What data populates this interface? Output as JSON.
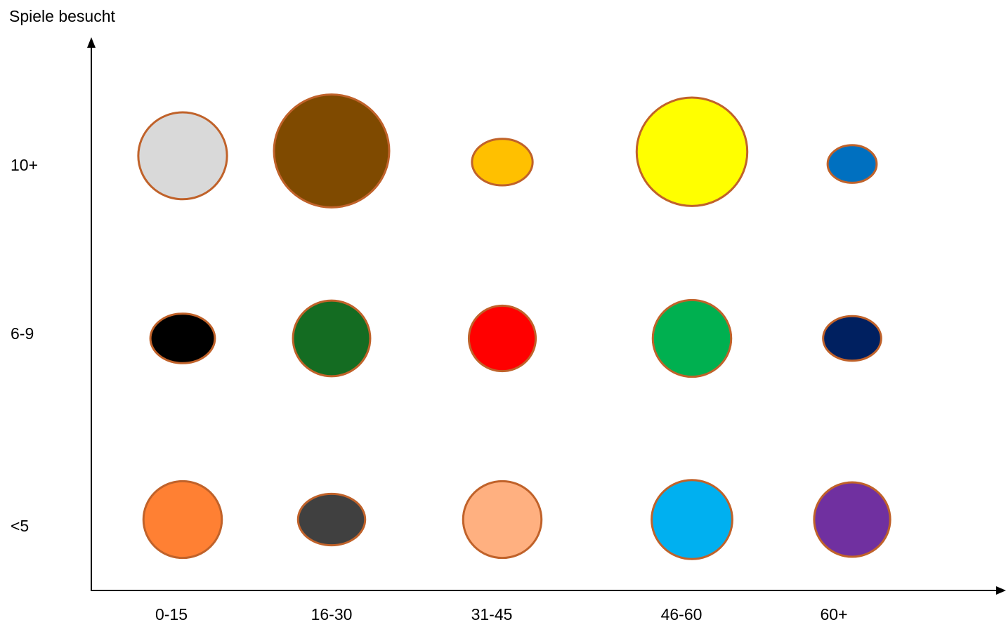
{
  "chart_data": {
    "type": "scatter",
    "ylabel": "Spiele besucht",
    "xlabel": "",
    "categories": [
      "0-15",
      "16-30",
      "31-45",
      "46-60",
      "60+"
    ],
    "y_categories": [
      "<5",
      "6-9",
      "10+"
    ],
    "bubble_outline_color": "#C0622A",
    "axis_color": "#000000",
    "grid": false,
    "legend": "none",
    "points": [
      {
        "x": "0-15",
        "y": "10+",
        "size": 0.77,
        "color": "#D9D9D9"
      },
      {
        "x": "16-30",
        "y": "10+",
        "size": 1.0,
        "color": "#7F4A00"
      },
      {
        "x": "31-45",
        "y": "10+",
        "size": 0.47,
        "color": "#FFC000"
      },
      {
        "x": "46-60",
        "y": "10+",
        "size": 0.96,
        "color": "#FFFF00"
      },
      {
        "x": "60+",
        "y": "10+",
        "size": 0.38,
        "color": "#0070C0"
      },
      {
        "x": "0-15",
        "y": "6-9",
        "size": 0.5,
        "color": "#000000"
      },
      {
        "x": "16-30",
        "y": "6-9",
        "size": 0.67,
        "color": "#146C22"
      },
      {
        "x": "31-45",
        "y": "6-9",
        "size": 0.58,
        "color": "#FF0000"
      },
      {
        "x": "46-60",
        "y": "6-9",
        "size": 0.68,
        "color": "#00B050"
      },
      {
        "x": "60+",
        "y": "6-9",
        "size": 0.45,
        "color": "#002060"
      },
      {
        "x": "0-15",
        "y": "<5",
        "size": 0.68,
        "color": "#FF8033"
      },
      {
        "x": "16-30",
        "y": "<5",
        "size": 0.52,
        "color": "#404040"
      },
      {
        "x": "31-45",
        "y": "<5",
        "size": 0.68,
        "color": "#FFB080"
      },
      {
        "x": "46-60",
        "y": "<5",
        "size": 0.7,
        "color": "#00B0F0"
      },
      {
        "x": "60+",
        "y": "<5",
        "size": 0.66,
        "color": "#7030A0"
      }
    ]
  }
}
